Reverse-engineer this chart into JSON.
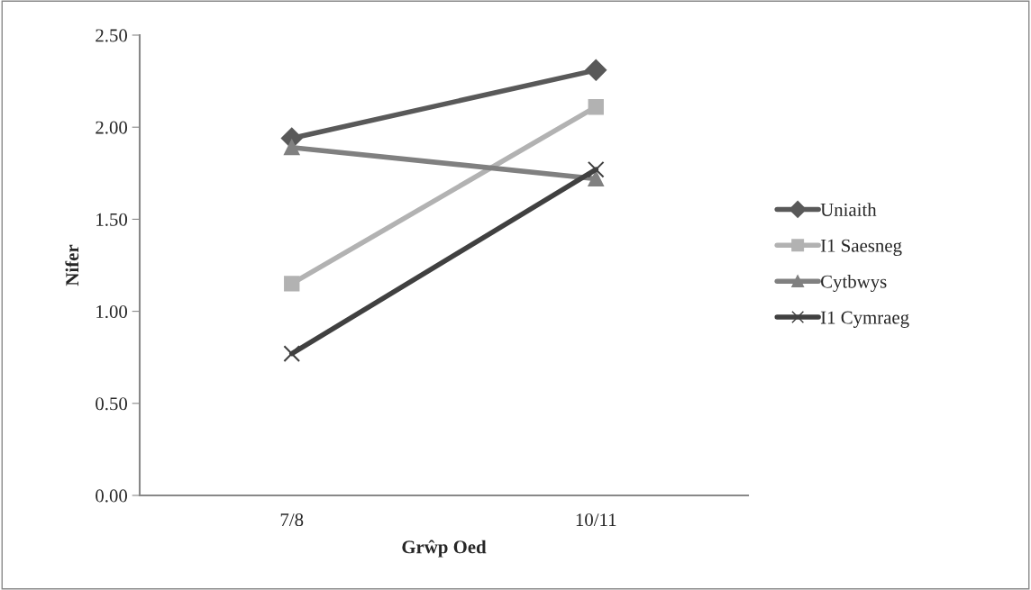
{
  "chart_data": {
    "type": "line",
    "xlabel": "Grŵp Oed",
    "ylabel": "Nifer",
    "categories": [
      "7/8",
      "10/11"
    ],
    "series": [
      {
        "name": "Uniaith",
        "color": "#595959",
        "marker": "diamond",
        "values": [
          1.94,
          2.31
        ]
      },
      {
        "name": "I1 Saesneg",
        "color": "#b2b2b2",
        "marker": "square",
        "values": [
          1.15,
          2.11
        ]
      },
      {
        "name": "Cytbwys",
        "color": "#808080",
        "marker": "triangle",
        "values": [
          1.89,
          1.72
        ]
      },
      {
        "name": "I1 Cymraeg",
        "color": "#404040",
        "marker": "cross",
        "values": [
          0.77,
          1.77
        ]
      }
    ],
    "ylim": [
      0,
      2.5
    ],
    "yticks": [
      {
        "value": 0,
        "label": "0.00"
      },
      {
        "value": 0.5,
        "label": "0.50"
      },
      {
        "value": 1,
        "label": "1.00"
      },
      {
        "value": 1.5,
        "label": "1.50"
      },
      {
        "value": 2,
        "label": "2.00"
      },
      {
        "value": 2.5,
        "label": "2.50"
      }
    ],
    "grid": false,
    "legend": "right",
    "line_style": "solid"
  }
}
